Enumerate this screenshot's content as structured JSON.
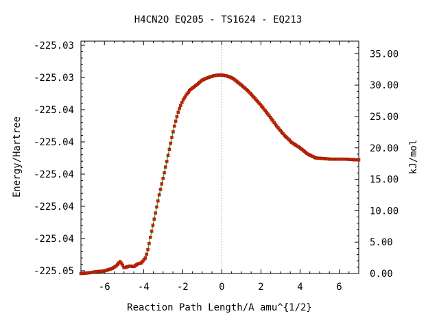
{
  "chart_data": {
    "type": "line",
    "title": "H4CN2O   EQ205 - TS1624 - EQ213",
    "xlabel": "Reaction Path Length/A amu^{1/2}",
    "ylabel_left": "Energy/Hartree",
    "ylabel_right": "kJ/mol",
    "xlim": [
      -7.2,
      7.0
    ],
    "ylim_kj": [
      0.0,
      37.0
    ],
    "x_ticks": [
      -6,
      -4,
      -2,
      0,
      2,
      4,
      6
    ],
    "x_tick_labels": [
      "-6",
      "-4",
      "-2",
      "0",
      "2",
      "4",
      "6"
    ],
    "y_left_tick_labels": [
      "-225.05",
      "-225.04",
      "-225.04",
      "-225.04",
      "-225.04",
      "-225.04",
      "-225.03",
      "-225.03"
    ],
    "y_right_ticks": [
      0,
      5,
      10,
      15,
      20,
      25,
      30,
      35
    ],
    "y_right_tick_labels": [
      "0.00",
      "5.00",
      "10.00",
      "15.00",
      "20.00",
      "25.00",
      "30.00",
      "35.00"
    ],
    "ts_x": 0.0,
    "colors": {
      "line": "#009900",
      "marker": "#cc2200",
      "marker_edge": "#8b1a00",
      "ts_line": "#aaaaaa"
    },
    "series": [
      {
        "x": [
          -7.2,
          -6.8,
          -6.4,
          -6.0,
          -5.6,
          -5.4,
          -5.2,
          -5.1,
          -5.0,
          -4.9,
          -4.7,
          -4.5,
          -4.3,
          -4.1,
          -3.9,
          -3.8,
          -3.6,
          -3.4,
          -3.2,
          -3.0,
          -2.8,
          -2.6,
          -2.4,
          -2.2,
          -2.0,
          -1.8,
          -1.6,
          -1.3,
          -1.0,
          -0.7,
          -0.4,
          -0.2,
          0.0,
          0.2,
          0.4,
          0.6,
          0.8,
          1.0,
          1.3,
          1.6,
          2.0,
          2.4,
          2.8,
          3.2,
          3.6,
          4.0,
          4.4,
          4.8,
          5.2,
          5.6,
          6.0,
          6.4,
          6.8,
          7.0
        ],
        "y": [
          0.0,
          0.1,
          0.3,
          0.4,
          0.8,
          1.2,
          1.9,
          1.5,
          0.9,
          1.0,
          1.2,
          1.1,
          1.5,
          1.7,
          2.5,
          3.5,
          6.5,
          9.5,
          12.5,
          15.2,
          18.0,
          21.0,
          23.8,
          26.0,
          27.5,
          28.5,
          29.3,
          30.0,
          30.8,
          31.2,
          31.5,
          31.6,
          31.6,
          31.5,
          31.3,
          31.0,
          30.5,
          30.0,
          29.2,
          28.2,
          26.8,
          25.2,
          23.5,
          22.0,
          20.8,
          20.0,
          19.0,
          18.4,
          18.3,
          18.2,
          18.2,
          18.2,
          18.1,
          18.1
        ]
      }
    ]
  }
}
